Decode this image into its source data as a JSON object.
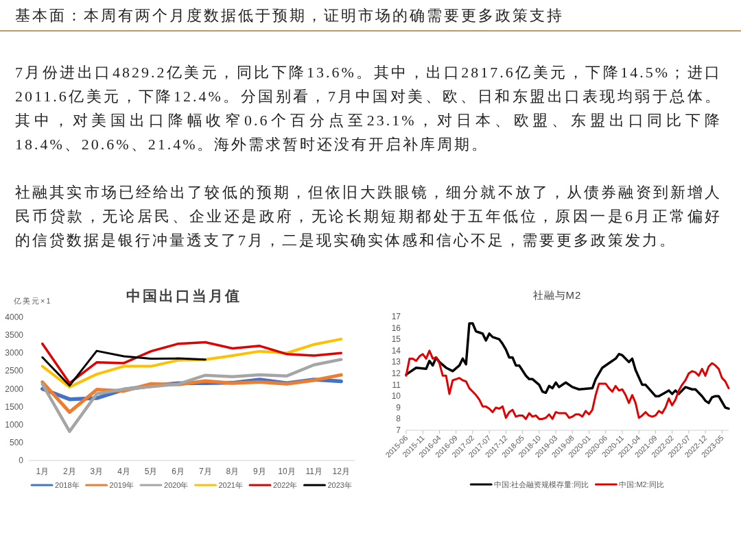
{
  "chart_data": [
    {
      "type": "other",
      "title": "基本面：本周有两个月度数据低于预期，证明市场的确需要更多政策支持",
      "annotations": [
        "7月份进出口4829.2亿美元，同比下降13.6%。其中，出口2817.6亿美元，下降14.5%；进口2011.6亿美元，下降12.4%。分国别看，7月中国对美、欧、日和东盟出口表现均弱于总体。其中，对美国出口降幅收窄0.6个百分点至23.1%，对日本、欧盟、东盟出口同比下降18.4%、20.6%、21.4%。海外需求暂时还没有开启补库周期。",
        "社融其实市场已经给出了较低的预期，但依旧大跌眼镜，细分就不放了，从债券融资到新增人民币贷款，无论居民、企业还是政府，无论长期短期都处于五年低位，原因一是6月正常偏好的信贷数据是银行冲量透支了7月，二是现实确实体感和信心不足，需要更多政策发力。"
      ]
    },
    {
      "type": "line",
      "title": "中国出口当月值",
      "ylabel": "亿美元×1",
      "categories": [
        "1月",
        "2月",
        "3月",
        "4月",
        "5月",
        "6月",
        "7月",
        "8月",
        "9月",
        "10月",
        "11月",
        "12月"
      ],
      "ylim": [
        0,
        4000
      ],
      "yticks": [
        0,
        500,
        1000,
        1500,
        2000,
        2500,
        3000,
        3500,
        4000
      ],
      "legend": "bottom",
      "series": [
        {
          "name": "2018年",
          "color": "#4472c4",
          "values": [
            2000,
            1710,
            1740,
            1980,
            2080,
            2160,
            2160,
            2170,
            2260,
            2160,
            2260,
            2210
          ]
        },
        {
          "name": "2019年",
          "color": "#ed7d31",
          "values": [
            2190,
            1350,
            1980,
            1940,
            2140,
            2120,
            2220,
            2160,
            2190,
            2140,
            2240,
            2390
          ]
        },
        {
          "name": "2020年",
          "color": "#a5a5a5",
          "values": [
            2130,
            810,
            1860,
            1990,
            2060,
            2130,
            2380,
            2340,
            2390,
            2360,
            2670,
            2820
          ]
        },
        {
          "name": "2021年",
          "color": "#ffc000",
          "values": [
            2630,
            2050,
            2410,
            2630,
            2630,
            2800,
            2820,
            2930,
            3050,
            3000,
            3240,
            3390
          ]
        },
        {
          "name": "2022年",
          "color": "#e00000",
          "values": [
            3260,
            2160,
            2740,
            2720,
            3050,
            3260,
            3300,
            3130,
            3200,
            2970,
            2930,
            3000
          ]
        },
        {
          "name": "2023年",
          "color": "#000000",
          "values": [
            2880,
            2090,
            3060,
            2910,
            2840,
            2850,
            2820,
            null,
            null,
            null,
            null,
            null
          ]
        }
      ]
    },
    {
      "type": "line",
      "title": "社融与M2",
      "xlim": [
        "2015-06",
        "2023-07"
      ],
      "xticks": [
        "2015-06",
        "2015-11",
        "2016-04",
        "2016-09",
        "2017-02",
        "2017-07",
        "2017-12",
        "2018-05",
        "2018-10",
        "2019-03",
        "2019-08",
        "2020-01",
        "2020-06",
        "2020-11",
        "2021-04",
        "2021-09",
        "2022-02",
        "2022-07",
        "2022-12",
        "2023-05"
      ],
      "ylim": [
        7,
        17
      ],
      "yticks": [
        7,
        8,
        9,
        10,
        11,
        12,
        13,
        14,
        15,
        16,
        17
      ],
      "legend": "bottom",
      "x": [
        "2015-06",
        "2015-07",
        "2015-08",
        "2015-09",
        "2015-10",
        "2015-11",
        "2015-12",
        "2016-01",
        "2016-02",
        "2016-03",
        "2016-04",
        "2016-05",
        "2016-06",
        "2016-07",
        "2016-08",
        "2016-09",
        "2016-10",
        "2016-11",
        "2016-12",
        "2017-01",
        "2017-02",
        "2017-03",
        "2017-04",
        "2017-05",
        "2017-06",
        "2017-07",
        "2017-08",
        "2017-09",
        "2017-10",
        "2017-11",
        "2017-12",
        "2018-01",
        "2018-02",
        "2018-03",
        "2018-04",
        "2018-05",
        "2018-06",
        "2018-07",
        "2018-08",
        "2018-09",
        "2018-10",
        "2018-11",
        "2018-12",
        "2019-01",
        "2019-02",
        "2019-03",
        "2019-04",
        "2019-05",
        "2019-06",
        "2019-07",
        "2019-08",
        "2019-09",
        "2019-10",
        "2019-11",
        "2019-12",
        "2020-01",
        "2020-02",
        "2020-03",
        "2020-04",
        "2020-05",
        "2020-06",
        "2020-07",
        "2020-08",
        "2020-09",
        "2020-10",
        "2020-11",
        "2020-12",
        "2021-01",
        "2021-02",
        "2021-03",
        "2021-04",
        "2021-05",
        "2021-06",
        "2021-07",
        "2021-08",
        "2021-09",
        "2021-10",
        "2021-11",
        "2021-12",
        "2022-01",
        "2022-02",
        "2022-03",
        "2022-04",
        "2022-05",
        "2022-06",
        "2022-07",
        "2022-08",
        "2022-09",
        "2022-10",
        "2022-11",
        "2022-12",
        "2023-01",
        "2023-02",
        "2023-03",
        "2023-04",
        "2023-05",
        "2023-06",
        "2023-07"
      ],
      "series": [
        {
          "name": "中国:社会融资规模存量:同比",
          "color": "#000000",
          "x": [
            "2015-06",
            "2015-09",
            "2015-12",
            "2016-01",
            "2016-02",
            "2016-03",
            "2016-04",
            "2016-06",
            "2016-08",
            "2016-10",
            "2016-11",
            "2016-12",
            "2017-01",
            "2017-02",
            "2017-03",
            "2017-04",
            "2017-05",
            "2017-06",
            "2017-07",
            "2017-08",
            "2017-10",
            "2017-11",
            "2017-12",
            "2018-01",
            "2018-02",
            "2018-03",
            "2018-04",
            "2018-06",
            "2018-07",
            "2018-08",
            "2018-10",
            "2018-11",
            "2018-12",
            "2019-01",
            "2019-02",
            "2019-03",
            "2019-04",
            "2019-06",
            "2019-08",
            "2019-10",
            "2020-02",
            "2020-03",
            "2020-05",
            "2020-07",
            "2020-09",
            "2020-10",
            "2020-11",
            "2021-01",
            "2021-02",
            "2021-03",
            "2021-05",
            "2021-06",
            "2021-09",
            "2021-10",
            "2022-01",
            "2022-02",
            "2022-03",
            "2022-04",
            "2022-06",
            "2022-08",
            "2022-09",
            "2022-11",
            "2022-12",
            "2023-01",
            "2023-02",
            "2023-03",
            "2023-04",
            "2023-05",
            "2023-06",
            "2023-07"
          ],
          "values": [
            11.9,
            12.5,
            12.4,
            13.1,
            12.7,
            13.4,
            13.0,
            12.5,
            12.2,
            12.7,
            13.3,
            12.8,
            16.4,
            16.4,
            15.7,
            15.6,
            15.5,
            14.9,
            15.5,
            15.2,
            15.0,
            14.6,
            14.1,
            13.4,
            13.4,
            12.7,
            12.7,
            11.8,
            11.5,
            11.5,
            11.0,
            10.4,
            10.3,
            10.9,
            10.7,
            11.2,
            10.8,
            11.2,
            10.8,
            10.6,
            10.7,
            11.5,
            12.5,
            12.9,
            13.3,
            13.7,
            13.6,
            13.0,
            13.3,
            12.3,
            11.0,
            11.0,
            10.0,
            10.0,
            10.5,
            10.2,
            10.5,
            10.2,
            10.8,
            10.6,
            10.6,
            10.0,
            9.6,
            9.4,
            9.9,
            10.0,
            10.0,
            9.5,
            9.0,
            8.9
          ]
        },
        {
          "name": "中国:M2:同比",
          "color": "#e00000",
          "values": [
            11.8,
            13.3,
            13.3,
            13.1,
            13.5,
            13.7,
            13.3,
            14.0,
            13.3,
            13.4,
            12.9,
            11.8,
            11.8,
            10.2,
            11.4,
            11.5,
            11.6,
            11.4,
            11.3,
            10.7,
            10.4,
            10.1,
            9.7,
            9.1,
            9.1,
            8.9,
            8.6,
            9.0,
            8.9,
            9.1,
            8.1,
            8.6,
            8.8,
            8.2,
            8.3,
            8.3,
            8.0,
            8.5,
            8.2,
            8.3,
            8.0,
            8.0,
            8.1,
            8.4,
            8.0,
            8.6,
            8.5,
            8.5,
            8.5,
            8.1,
            8.2,
            8.4,
            8.4,
            8.2,
            8.7,
            8.4,
            8.8,
            10.1,
            11.1,
            11.1,
            11.1,
            10.7,
            10.4,
            10.9,
            10.5,
            10.6,
            10.1,
            9.4,
            10.1,
            9.4,
            8.1,
            8.3,
            8.6,
            8.3,
            8.2,
            8.3,
            8.7,
            8.5,
            9.0,
            9.8,
            9.2,
            9.7,
            10.5,
            11.0,
            11.4,
            12.0,
            12.2,
            12.1,
            11.8,
            12.4,
            11.8,
            12.6,
            12.9,
            12.7,
            12.4,
            11.6,
            11.3,
            10.7
          ]
        }
      ]
    }
  ]
}
